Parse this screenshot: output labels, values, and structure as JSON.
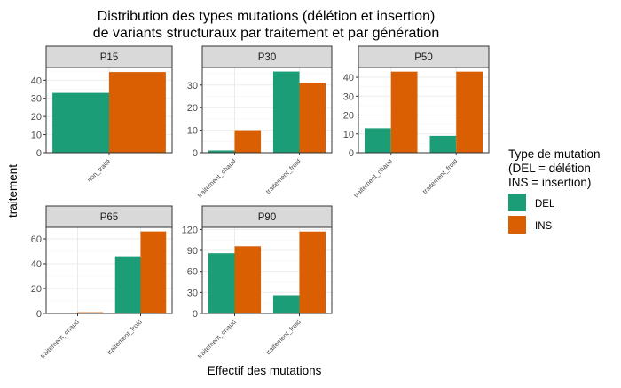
{
  "title_line1": "Distribution des types mutations (délétion et insertion)",
  "title_line2": "de variants structuraux par traitement et par génération",
  "xlabel": "Effectif des mutations",
  "ylabel": "traitement",
  "legend": {
    "title_lines": [
      "Type de mutation",
      "(DEL = délétion",
      "INS = insertion)"
    ],
    "entries": [
      {
        "key": "DEL",
        "label": "DEL",
        "color": "#1b9e77"
      },
      {
        "key": "INS",
        "label": "INS",
        "color": "#d95f02"
      }
    ]
  },
  "chart_data": [
    {
      "type": "bar",
      "title": "P15",
      "categories": [
        "non_traité"
      ],
      "ylim": [
        0,
        47
      ],
      "yticks": [
        0,
        10,
        20,
        30,
        40
      ],
      "series": [
        {
          "name": "DEL",
          "values": [
            33
          ]
        },
        {
          "name": "INS",
          "values": [
            44.5
          ]
        }
      ]
    },
    {
      "type": "bar",
      "title": "P30",
      "categories": [
        "traitement_chaud",
        "traitement_froid"
      ],
      "ylim": [
        0,
        37.8
      ],
      "yticks": [
        0,
        10,
        20,
        30
      ],
      "series": [
        {
          "name": "DEL",
          "values": [
            1,
            36
          ]
        },
        {
          "name": "INS",
          "values": [
            10,
            31
          ]
        }
      ]
    },
    {
      "type": "bar",
      "title": "P50",
      "categories": [
        "traitement_chaud",
        "traitement_froid"
      ],
      "ylim": [
        0,
        45.2
      ],
      "yticks": [
        0,
        10,
        20,
        30,
        40
      ],
      "series": [
        {
          "name": "DEL",
          "values": [
            13,
            9
          ]
        },
        {
          "name": "INS",
          "values": [
            43,
            43
          ]
        }
      ]
    },
    {
      "type": "bar",
      "title": "P65",
      "categories": [
        "traitement_chaud",
        "traitement_froid"
      ],
      "ylim": [
        0,
        69.3
      ],
      "yticks": [
        0,
        20,
        40,
        60
      ],
      "series": [
        {
          "name": "DEL",
          "values": [
            0,
            46
          ]
        },
        {
          "name": "INS",
          "values": [
            1,
            66
          ]
        }
      ]
    },
    {
      "type": "bar",
      "title": "P90",
      "categories": [
        "traitement_chaud",
        "traitement_froid"
      ],
      "ylim": [
        0,
        123
      ],
      "yticks": [
        0,
        30,
        60,
        90,
        120
      ],
      "series": [
        {
          "name": "DEL",
          "values": [
            86,
            26
          ]
        },
        {
          "name": "INS",
          "values": [
            96,
            117
          ]
        }
      ]
    }
  ]
}
